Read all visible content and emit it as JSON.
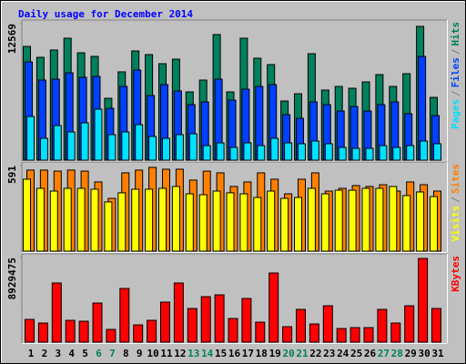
{
  "chart_data": [
    {
      "type": "bar",
      "title": "Daily usage for December 2014",
      "ylim": [
        0,
        12569
      ],
      "yticks": [
        12569
      ],
      "legend_separator": "/",
      "series": [
        {
          "name": "Hits",
          "color": "#00805c",
          "values": [
            10475,
            9469,
            10140,
            11229,
            9888,
            9553,
            5698,
            8129,
            10056,
            9721,
            8883,
            9302,
            6285,
            7374,
            11564,
            6285,
            11229,
            9386,
            8799,
            5447,
            6117,
            9805,
            6453,
            6788,
            6620,
            7207,
            7877,
            6788,
            7961,
            12319,
            5782
          ]
        },
        {
          "name": "Files",
          "color": "#0040ff",
          "values": [
            9050,
            7374,
            7458,
            8045,
            7626,
            7710,
            4777,
            6788,
            8296,
            5950,
            6955,
            6369,
            5112,
            5363,
            7458,
            5531,
            6536,
            6788,
            6955,
            4190,
            3855,
            5363,
            5112,
            4525,
            4944,
            4525,
            5112,
            5363,
            4274,
            9553,
            4106
          ]
        },
        {
          "name": "Pages",
          "color": "#00e0ff",
          "values": [
            4022,
            2011,
            3184,
            2598,
            3436,
            4693,
            2346,
            2598,
            3268,
            2179,
            2011,
            2346,
            2430,
            1341,
            1592,
            1173,
            1592,
            1341,
            2011,
            1592,
            1508,
            1760,
            1508,
            1173,
            1089,
            1089,
            1341,
            1173,
            1341,
            1760,
            1508
          ]
        }
      ]
    },
    {
      "type": "bar",
      "ylim": [
        0,
        591
      ],
      "yticks": [
        591
      ],
      "legend_separator": "/",
      "series": [
        {
          "name": "Sites",
          "color": "#ff8000",
          "values": [
            560,
            560,
            553,
            560,
            553,
            478,
            365,
            541,
            560,
            579,
            566,
            566,
            491,
            553,
            541,
            447,
            478,
            541,
            497,
            396,
            497,
            541,
            415,
            434,
            453,
            447,
            459,
            415,
            478,
            459,
            415
          ]
        },
        {
          "name": "Visits",
          "color": "#ffff00",
          "values": [
            497,
            434,
            415,
            434,
            434,
            428,
            340,
            403,
            428,
            428,
            434,
            447,
            396,
            390,
            415,
            403,
            396,
            371,
            415,
            365,
            371,
            434,
            396,
            421,
            421,
            434,
            434,
            447,
            384,
            409,
            377
          ]
        }
      ]
    },
    {
      "type": "bar",
      "ylim": [
        0,
        8929475
      ],
      "yticks": [
        8929475
      ],
      "categories": [
        "1",
        "2",
        "3",
        "4",
        "5",
        "6",
        "7",
        "8",
        "9",
        "10",
        "11",
        "12",
        "13",
        "14",
        "15",
        "16",
        "17",
        "18",
        "19",
        "20",
        "21",
        "22",
        "23",
        "24",
        "25",
        "26",
        "27",
        "28",
        "29",
        "30",
        "31"
      ],
      "category_colors": [
        "#000000",
        "#000000",
        "#000000",
        "#000000",
        "#000000",
        "#00805c",
        "#00805c",
        "#000000",
        "#000000",
        "#000000",
        "#000000",
        "#000000",
        "#00805c",
        "#00805c",
        "#000000",
        "#000000",
        "#000000",
        "#000000",
        "#000000",
        "#00805c",
        "#00805c",
        "#000000",
        "#000000",
        "#000000",
        "#000000",
        "#000000",
        "#00805c",
        "#00805c",
        "#000000",
        "#000000",
        "#000000"
      ],
      "series": [
        {
          "name": "KBytes",
          "color": "#ff0000",
          "values": [
            2400000,
            2016000,
            6241000,
            2304000,
            2208000,
            4129000,
            1344000,
            5665000,
            1824000,
            2304000,
            4225000,
            6241000,
            3553000,
            4801000,
            4993000,
            2496000,
            4609000,
            2112000,
            7297000,
            1632000,
            3457000,
            1920000,
            3841000,
            1440000,
            1536000,
            1536000,
            3457000,
            2016000,
            3841000,
            8833000,
            3553000
          ]
        }
      ]
    }
  ]
}
